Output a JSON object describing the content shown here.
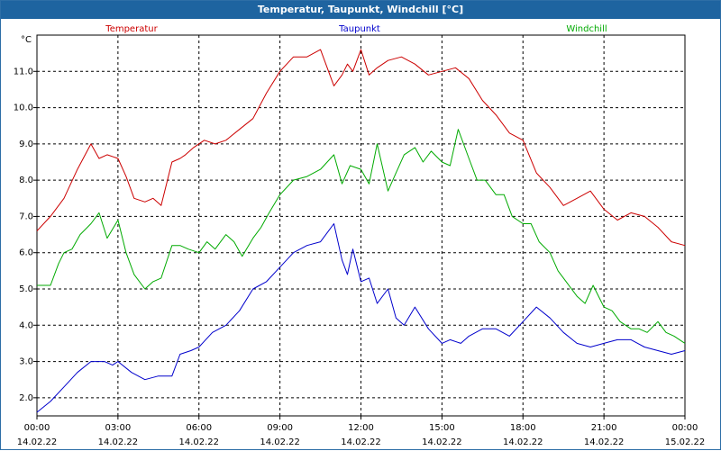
{
  "window": {
    "title": "Temperatur, Taupunkt, Windchill [°C]"
  },
  "colors": {
    "titlebar": "#1e64a0",
    "temperatur": "#cc0000",
    "taupunkt": "#0000cc",
    "windchill": "#00aa00",
    "grid": "#000000"
  },
  "chart_data": {
    "type": "line",
    "title": "Temperatur, Taupunkt, Windchill [°C]",
    "ylabel": "°C",
    "ylim": [
      1.5,
      12.0
    ],
    "yticks": [
      "2.0",
      "3.0",
      "4.0",
      "5.0",
      "6.0",
      "7.0",
      "8.0",
      "9.0",
      "10.0",
      "11.0"
    ],
    "xlim": [
      0,
      24
    ],
    "xticks": [
      {
        "time": "00:00",
        "date": "14.02.22"
      },
      {
        "time": "03:00",
        "date": "14.02.22"
      },
      {
        "time": "06:00",
        "date": "14.02.22"
      },
      {
        "time": "09:00",
        "date": "14.02.22"
      },
      {
        "time": "12:00",
        "date": "14.02.22"
      },
      {
        "time": "15:00",
        "date": "14.02.22"
      },
      {
        "time": "18:00",
        "date": "14.02.22"
      },
      {
        "time": "21:00",
        "date": "14.02.22"
      },
      {
        "time": "00:00",
        "date": "15.02.22"
      }
    ],
    "grid": true,
    "legend_position": "top",
    "series": [
      {
        "name": "Temperatur",
        "color": "#cc0000",
        "x": [
          0,
          0.5,
          1,
          1.5,
          2,
          2.3,
          2.6,
          3,
          3.3,
          3.6,
          4,
          4.3,
          4.6,
          5,
          5.3,
          5.5,
          5.8,
          6.2,
          6.6,
          7,
          7.5,
          8,
          8.5,
          9,
          9.5,
          10,
          10.5,
          11,
          11.3,
          11.5,
          11.7,
          12,
          12.3,
          12.6,
          13,
          13.5,
          14,
          14.5,
          15,
          15.5,
          16,
          16.5,
          17,
          17.5,
          18,
          18.5,
          19,
          19.5,
          20,
          20.5,
          21,
          21.5,
          22,
          22.5,
          23,
          23.5,
          24
        ],
        "y": [
          6.6,
          7.0,
          7.5,
          8.3,
          9.0,
          8.6,
          8.7,
          8.6,
          8.1,
          7.5,
          7.4,
          7.5,
          7.3,
          8.5,
          8.6,
          8.7,
          8.9,
          9.1,
          9.0,
          9.1,
          9.4,
          9.7,
          10.4,
          11.0,
          11.4,
          11.4,
          11.6,
          10.6,
          10.9,
          11.2,
          11.0,
          11.6,
          10.9,
          11.1,
          11.3,
          11.4,
          11.2,
          10.9,
          11.0,
          11.1,
          10.8,
          10.2,
          9.8,
          9.3,
          9.1,
          8.2,
          7.8,
          7.3,
          7.5,
          7.7,
          7.2,
          6.9,
          7.1,
          7.0,
          6.7,
          6.3,
          6.2
        ]
      },
      {
        "name": "Taupunkt",
        "color": "#0000cc",
        "x": [
          0,
          0.5,
          1,
          1.5,
          2,
          2.5,
          2.8,
          3,
          3.5,
          4,
          4.5,
          5,
          5.3,
          5.7,
          6,
          6.5,
          7,
          7.5,
          8,
          8.5,
          9,
          9.5,
          10,
          10.5,
          11,
          11.3,
          11.5,
          11.7,
          12,
          12.3,
          12.6,
          13,
          13.3,
          13.6,
          14,
          14.5,
          15,
          15.3,
          15.7,
          16,
          16.5,
          17,
          17.5,
          18,
          18.5,
          19,
          19.5,
          20,
          20.5,
          21,
          21.5,
          22,
          22.5,
          23,
          23.5,
          24
        ],
        "y": [
          1.6,
          1.9,
          2.3,
          2.7,
          3.0,
          3.0,
          2.9,
          3.0,
          2.7,
          2.5,
          2.6,
          2.6,
          3.2,
          3.3,
          3.4,
          3.8,
          4.0,
          4.4,
          5.0,
          5.2,
          5.6,
          6.0,
          6.2,
          6.3,
          6.8,
          5.8,
          5.4,
          6.1,
          5.2,
          5.3,
          4.6,
          5.0,
          4.2,
          4.0,
          4.5,
          3.9,
          3.5,
          3.6,
          3.5,
          3.7,
          3.9,
          3.9,
          3.7,
          4.1,
          4.5,
          4.2,
          3.8,
          3.5,
          3.4,
          3.5,
          3.6,
          3.6,
          3.4,
          3.3,
          3.2,
          3.3
        ]
      },
      {
        "name": "Windchill",
        "color": "#00aa00",
        "x": [
          0,
          0.5,
          0.8,
          1,
          1.3,
          1.6,
          2,
          2.3,
          2.6,
          3,
          3.3,
          3.6,
          4,
          4.3,
          4.6,
          5,
          5.3,
          5.6,
          6,
          6.3,
          6.6,
          7,
          7.3,
          7.6,
          8,
          8.3,
          8.6,
          9,
          9.5,
          10,
          10.5,
          11,
          11.3,
          11.6,
          12,
          12.3,
          12.6,
          13,
          13.3,
          13.6,
          14,
          14.3,
          14.6,
          15,
          15.3,
          15.6,
          16,
          16.3,
          16.6,
          17,
          17.3,
          17.6,
          18,
          18.3,
          18.6,
          19,
          19.3,
          19.6,
          20,
          20.3,
          20.6,
          21,
          21.3,
          21.6,
          22,
          22.3,
          22.6,
          23,
          23.3,
          23.6,
          24
        ],
        "y": [
          5.1,
          5.1,
          5.7,
          6.0,
          6.1,
          6.5,
          6.8,
          7.1,
          6.4,
          6.9,
          6.0,
          5.4,
          5.0,
          5.2,
          5.3,
          6.2,
          6.2,
          6.1,
          6.0,
          6.3,
          6.1,
          6.5,
          6.3,
          5.9,
          6.4,
          6.7,
          7.1,
          7.6,
          8.0,
          8.1,
          8.3,
          8.7,
          7.9,
          8.4,
          8.3,
          7.9,
          9.0,
          7.7,
          8.2,
          8.7,
          8.9,
          8.5,
          8.8,
          8.5,
          8.4,
          9.4,
          8.6,
          8.0,
          8.0,
          7.6,
          7.6,
          7.0,
          6.8,
          6.8,
          6.3,
          6.0,
          5.5,
          5.2,
          4.8,
          4.6,
          5.1,
          4.5,
          4.4,
          4.1,
          3.9,
          3.9,
          3.8,
          4.1,
          3.8,
          3.7,
          3.5
        ]
      }
    ]
  }
}
